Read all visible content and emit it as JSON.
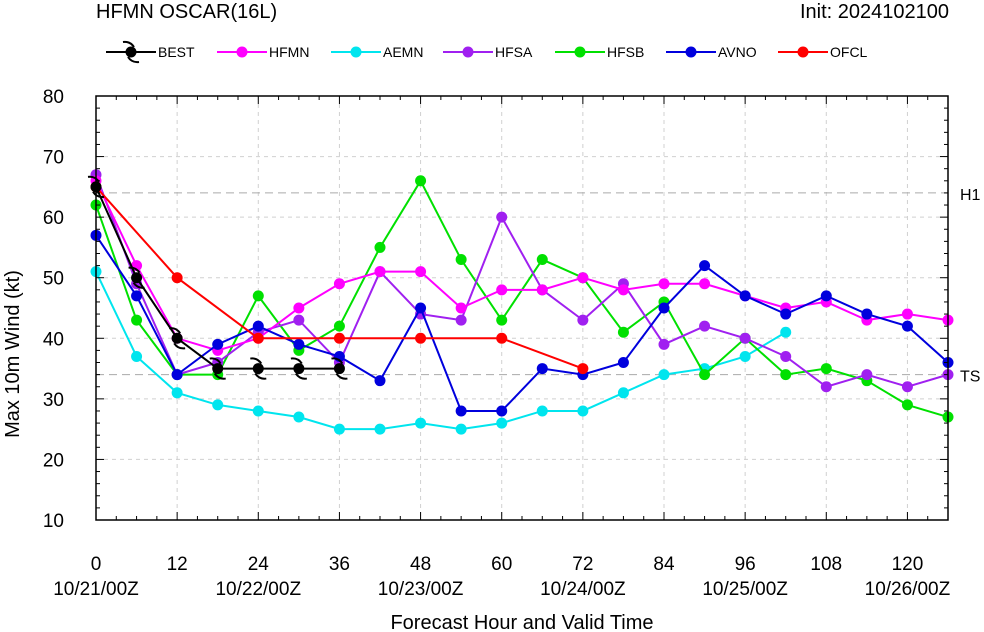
{
  "header": {
    "title_left": "HFMN OSCAR(16L)",
    "title_right": "Init: 2024102100"
  },
  "chart_data": {
    "type": "line",
    "xlabel": "Forecast Hour and Valid Time",
    "ylabel": "Max 10m Wind (kt)",
    "xlim": [
      0,
      126
    ],
    "ylim": [
      10,
      80
    ],
    "x_ticks": [
      0,
      12,
      24,
      36,
      48,
      60,
      72,
      84,
      96,
      108,
      120
    ],
    "y_ticks": [
      10,
      20,
      30,
      40,
      50,
      60,
      70,
      80
    ],
    "valid_time_labels": [
      {
        "x": 0,
        "label": "10/21/00Z"
      },
      {
        "x": 24,
        "label": "10/22/00Z"
      },
      {
        "x": 48,
        "label": "10/23/00Z"
      },
      {
        "x": 72,
        "label": "10/24/00Z"
      },
      {
        "x": 96,
        "label": "10/25/00Z"
      },
      {
        "x": 120,
        "label": "10/26/00Z"
      }
    ],
    "reference_lines": [
      {
        "label": "H1",
        "value": 64
      },
      {
        "label": "TS",
        "value": 34
      }
    ],
    "grid": true,
    "legend_position": "top",
    "series": [
      {
        "name": "BEST",
        "color": "#000000",
        "marker": "hurricane",
        "points": [
          [
            0,
            65
          ],
          [
            6,
            50
          ],
          [
            12,
            40
          ],
          [
            18,
            35
          ],
          [
            24,
            35
          ],
          [
            30,
            35
          ],
          [
            36,
            35
          ]
        ]
      },
      {
        "name": "HFMN",
        "color": "#ff00ff",
        "points": [
          [
            0,
            66
          ],
          [
            6,
            52
          ],
          [
            12,
            40
          ],
          [
            18,
            38
          ],
          [
            24,
            40
          ],
          [
            30,
            45
          ],
          [
            36,
            49
          ],
          [
            42,
            51
          ],
          [
            48,
            51
          ],
          [
            54,
            45
          ],
          [
            60,
            48
          ],
          [
            66,
            48
          ],
          [
            72,
            50
          ],
          [
            78,
            48
          ],
          [
            84,
            49
          ],
          [
            90,
            49
          ],
          [
            96,
            47
          ],
          [
            102,
            45
          ],
          [
            108,
            46
          ],
          [
            114,
            43
          ],
          [
            120,
            44
          ],
          [
            126,
            43
          ]
        ]
      },
      {
        "name": "AEMN",
        "color": "#00e5ee",
        "points": [
          [
            0,
            51
          ],
          [
            6,
            37
          ],
          [
            12,
            31
          ],
          [
            18,
            29
          ],
          [
            24,
            28
          ],
          [
            30,
            27
          ],
          [
            36,
            25
          ],
          [
            42,
            25
          ],
          [
            48,
            26
          ],
          [
            54,
            25
          ],
          [
            60,
            26
          ],
          [
            66,
            28
          ],
          [
            72,
            28
          ],
          [
            78,
            31
          ],
          [
            84,
            34
          ],
          [
            90,
            35
          ],
          [
            96,
            37
          ],
          [
            102,
            41
          ]
        ]
      },
      {
        "name": "HFSA",
        "color": "#a020f0",
        "points": [
          [
            0,
            67
          ],
          [
            6,
            49
          ],
          [
            12,
            34
          ],
          [
            18,
            36
          ],
          [
            24,
            41
          ],
          [
            30,
            43
          ],
          [
            36,
            36
          ],
          [
            42,
            51
          ],
          [
            48,
            44
          ],
          [
            54,
            43
          ],
          [
            60,
            60
          ],
          [
            66,
            48
          ],
          [
            72,
            43
          ],
          [
            78,
            49
          ],
          [
            84,
            39
          ],
          [
            90,
            42
          ],
          [
            96,
            40
          ],
          [
            102,
            37
          ],
          [
            108,
            32
          ],
          [
            114,
            34
          ],
          [
            120,
            32
          ],
          [
            126,
            34
          ]
        ]
      },
      {
        "name": "HFSB",
        "color": "#00e000",
        "points": [
          [
            0,
            62
          ],
          [
            6,
            43
          ],
          [
            12,
            34
          ],
          [
            18,
            34
          ],
          [
            24,
            47
          ],
          [
            30,
            38
          ],
          [
            36,
            42
          ],
          [
            42,
            55
          ],
          [
            48,
            66
          ],
          [
            54,
            53
          ],
          [
            60,
            43
          ],
          [
            66,
            53
          ],
          [
            72,
            50
          ],
          [
            78,
            41
          ],
          [
            84,
            46
          ],
          [
            90,
            34
          ],
          [
            96,
            40
          ],
          [
            102,
            34
          ],
          [
            108,
            35
          ],
          [
            114,
            33
          ],
          [
            120,
            29
          ],
          [
            126,
            27
          ]
        ]
      },
      {
        "name": "AVNO",
        "color": "#0000dd",
        "points": [
          [
            0,
            57
          ],
          [
            6,
            47
          ],
          [
            12,
            34
          ],
          [
            18,
            39
          ],
          [
            24,
            42
          ],
          [
            30,
            39
          ],
          [
            36,
            37
          ],
          [
            42,
            33
          ],
          [
            48,
            45
          ],
          [
            54,
            28
          ],
          [
            60,
            28
          ],
          [
            66,
            35
          ],
          [
            72,
            34
          ],
          [
            78,
            36
          ],
          [
            84,
            45
          ],
          [
            90,
            52
          ],
          [
            96,
            47
          ],
          [
            102,
            44
          ],
          [
            108,
            47
          ],
          [
            114,
            44
          ],
          [
            120,
            42
          ],
          [
            126,
            36
          ]
        ]
      },
      {
        "name": "OFCL",
        "color": "#ff0000",
        "points": [
          [
            0,
            65
          ],
          [
            12,
            50
          ],
          [
            24,
            40
          ],
          [
            36,
            40
          ],
          [
            48,
            40
          ],
          [
            60,
            40
          ],
          [
            72,
            35
          ]
        ]
      }
    ]
  }
}
